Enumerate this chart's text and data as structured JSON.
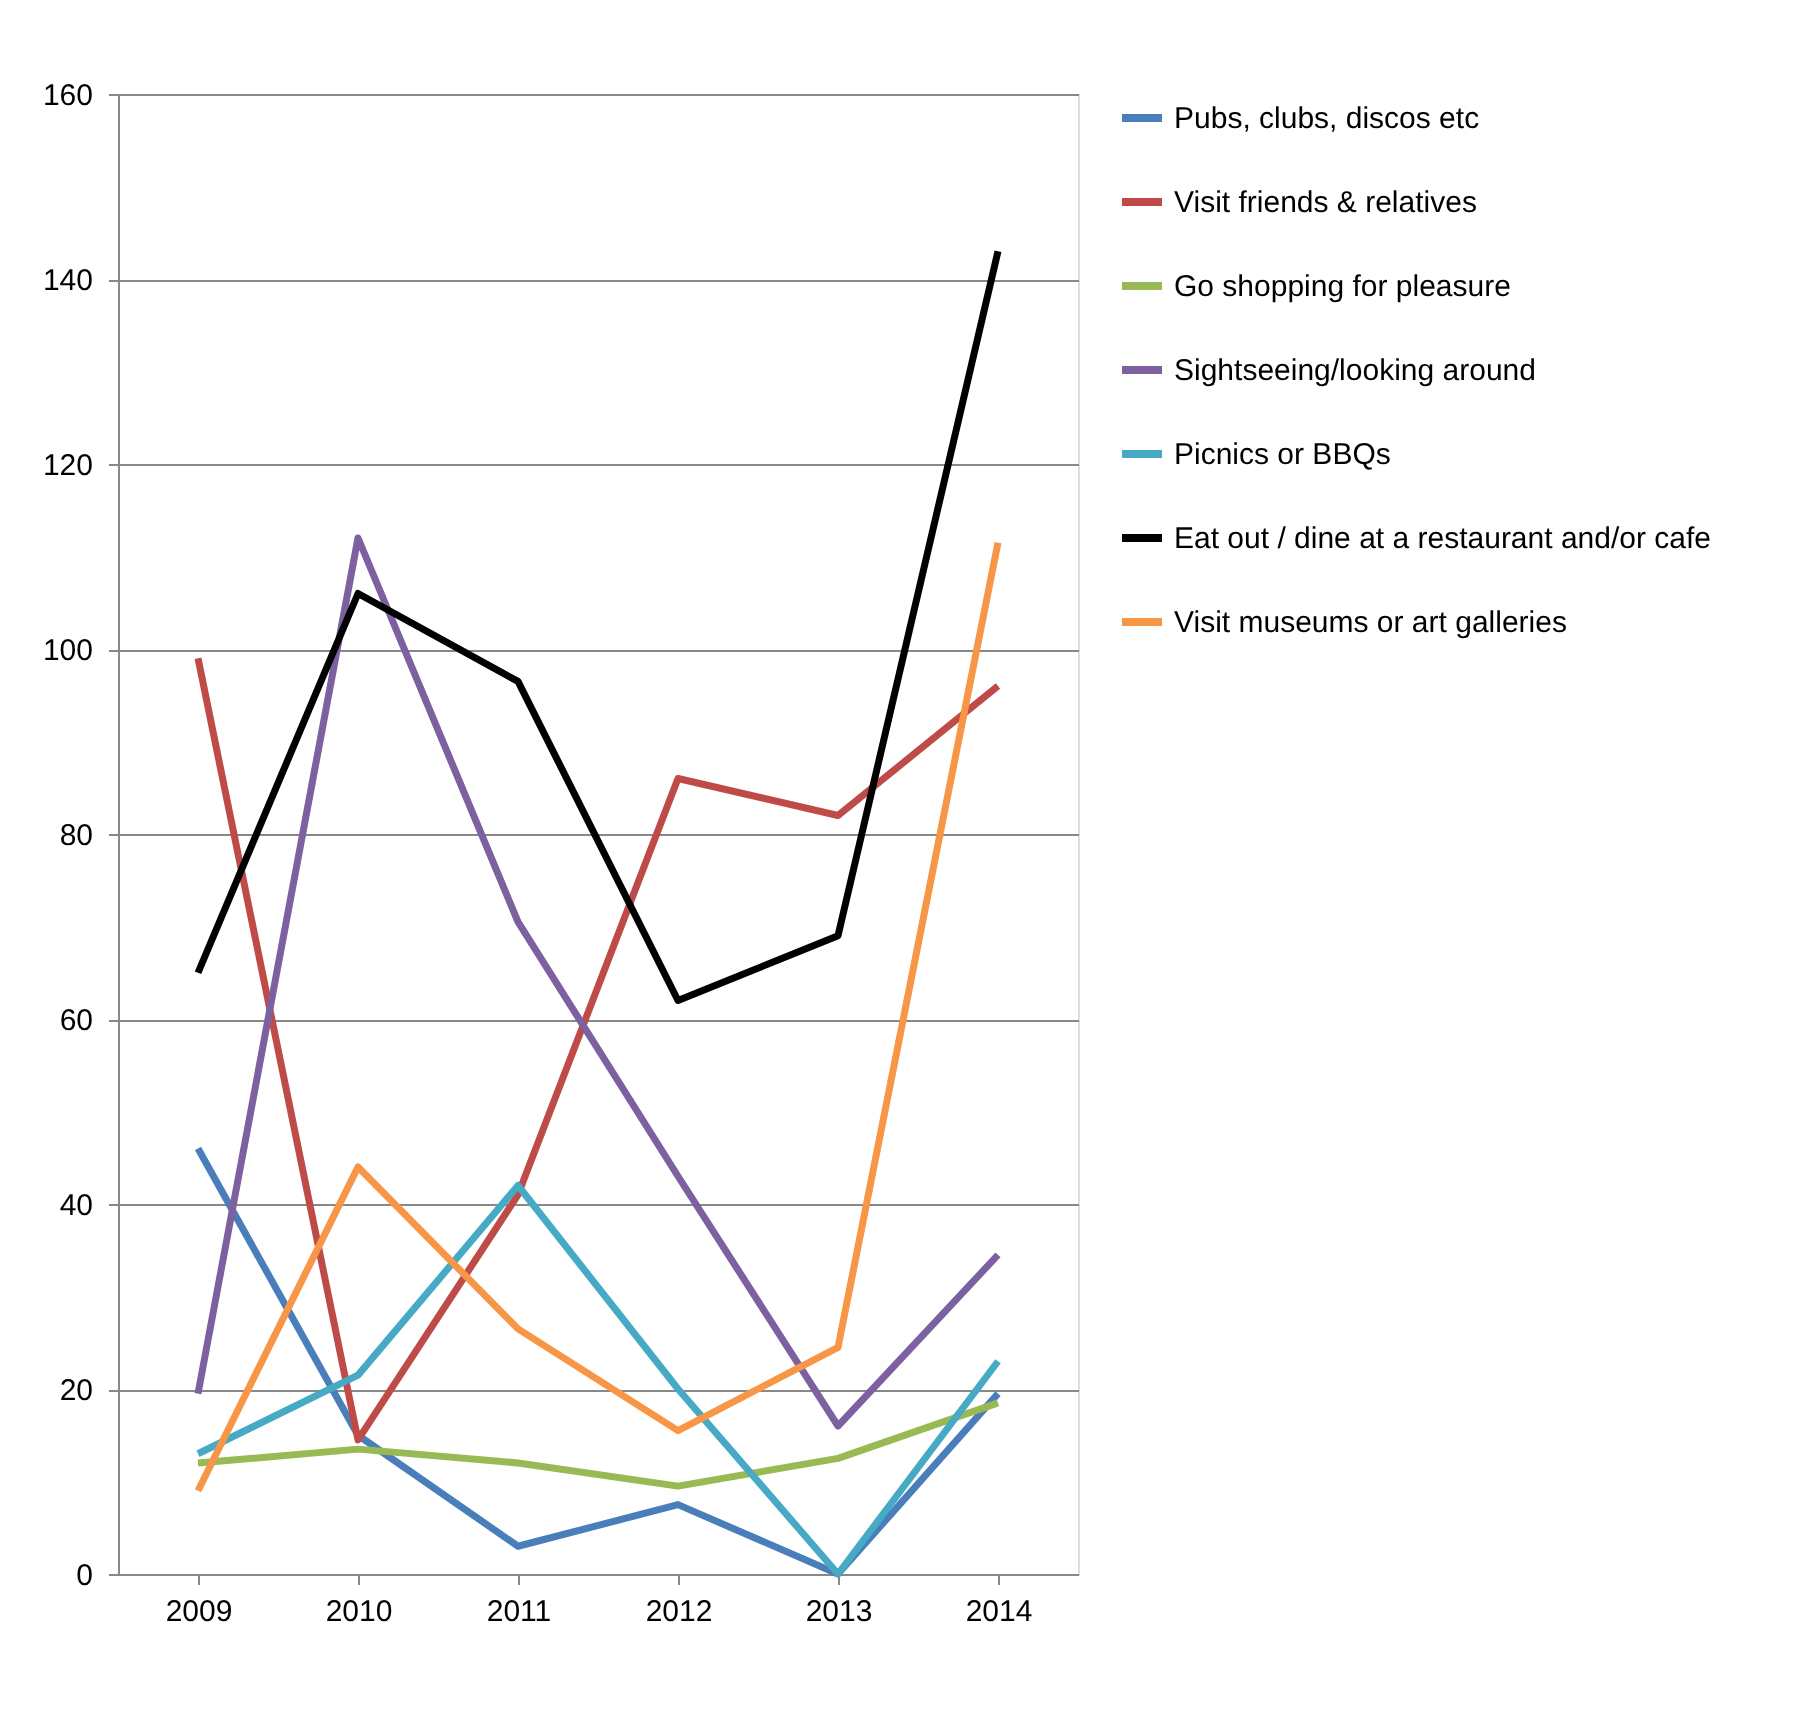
{
  "chart_data": {
    "type": "line",
    "categories": [
      "2009",
      "2010",
      "2011",
      "2012",
      "2013",
      "2014"
    ],
    "ylim": [
      0,
      160
    ],
    "yticks": [
      0,
      20,
      40,
      60,
      80,
      100,
      120,
      140,
      160
    ],
    "grid": "y",
    "legend": "right",
    "marker": "none",
    "line_style": "solid",
    "series": [
      {
        "name": "Pubs, clubs, discos etc",
        "color": "#4a7ebb",
        "values": [
          46,
          15,
          3,
          7.5,
          0,
          19.5
        ]
      },
      {
        "name": "Visit friends & relatives",
        "color": "#be4b48",
        "values": [
          99,
          14.5,
          41,
          86,
          82,
          96
        ]
      },
      {
        "name": "Go shopping for pleasure",
        "color": "#98b954",
        "values": [
          12,
          13.5,
          12,
          9.5,
          12.5,
          18.5
        ]
      },
      {
        "name": "Sightseeing/looking around",
        "color": "#7d60a0",
        "values": [
          19.5,
          112,
          70.5,
          43,
          16,
          34.5
        ]
      },
      {
        "name": "Picnics or BBQs",
        "color": "#46aac5",
        "values": [
          13,
          21.5,
          42,
          20,
          0,
          23
        ]
      },
      {
        "name": "Eat out / dine at a restaurant and/or cafe",
        "color": "#000000",
        "values": [
          65,
          106,
          96.5,
          62,
          69,
          143
        ]
      },
      {
        "name": "Visit museums or art galleries",
        "color": "#f79646",
        "values": [
          9,
          44,
          26.5,
          15.5,
          24.5,
          111.5
        ]
      }
    ]
  }
}
